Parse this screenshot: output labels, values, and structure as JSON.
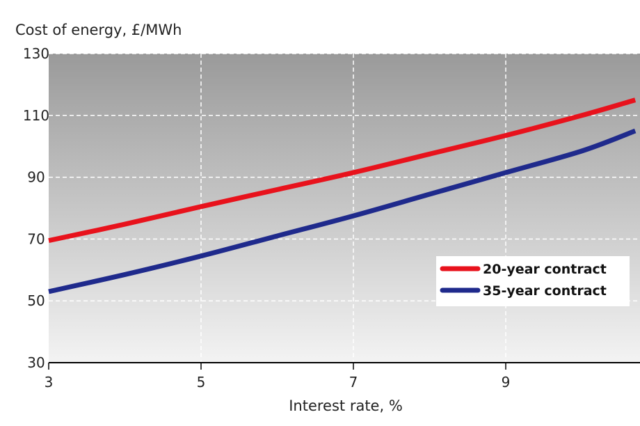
{
  "chart_data": {
    "type": "line",
    "title": "",
    "ylabel": "Cost of energy, £/MWh",
    "xlabel": "Interest rate, %",
    "xlim": [
      3,
      10.7
    ],
    "ylim": [
      30,
      130
    ],
    "xticks": [
      3,
      5,
      7,
      9
    ],
    "yticks": [
      30,
      50,
      70,
      90,
      110,
      130
    ],
    "grid": true,
    "legend": "right",
    "series": [
      {
        "name": "20-year contract",
        "color": "#e8121c",
        "x": [
          3,
          4,
          5,
          6,
          7,
          8,
          9,
          10,
          10.7
        ],
        "y": [
          69.5,
          74.8,
          80.5,
          86,
          91.5,
          97.5,
          103.5,
          110,
          115
        ]
      },
      {
        "name": "35-year contract",
        "color": "#1f2a8c",
        "x": [
          3,
          4,
          5,
          6,
          7,
          8,
          9,
          10,
          10.7
        ],
        "y": [
          53,
          58.5,
          64.5,
          71,
          77.5,
          84.5,
          91.5,
          98.5,
          105
        ]
      }
    ]
  }
}
